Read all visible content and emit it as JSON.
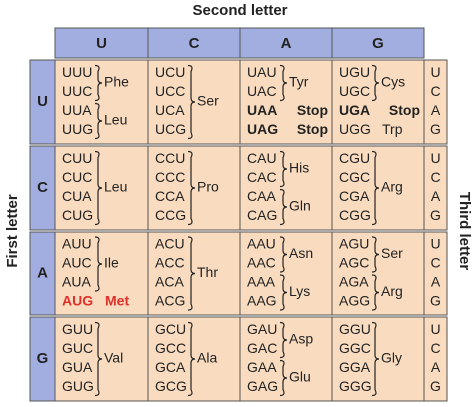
{
  "title_top": "Second letter",
  "title_left": "First letter",
  "title_right": "Third letter",
  "second_letters": [
    "U",
    "C",
    "A",
    "G"
  ],
  "rows": [
    {
      "first": "U",
      "third": [
        "U",
        "C",
        "A",
        "G"
      ],
      "cells": [
        {
          "groups": [
            {
              "codons": [
                "UUU",
                "UUC"
              ],
              "label": "Phe"
            },
            {
              "codons": [
                "UUA",
                "UUG"
              ],
              "label": "Leu"
            }
          ]
        },
        {
          "groups": [
            {
              "codons": [
                "UCU",
                "UCC",
                "UCA",
                "UCG"
              ],
              "label": "Ser"
            }
          ]
        },
        {
          "groups": [
            {
              "codons": [
                "UAU",
                "UAC"
              ],
              "label": "Tyr"
            },
            {
              "codons": [
                "UAA"
              ],
              "label": "Stop",
              "emphasis": "stop"
            },
            {
              "codons": [
                "UAG"
              ],
              "label": "Stop",
              "emphasis": "stop"
            }
          ]
        },
        {
          "groups": [
            {
              "codons": [
                "UGU",
                "UGC"
              ],
              "label": "Cys"
            },
            {
              "codons": [
                "UGA"
              ],
              "label": "Stop",
              "emphasis": "stop"
            },
            {
              "codons": [
                "UGG"
              ],
              "label": "Trp"
            }
          ]
        }
      ]
    },
    {
      "first": "C",
      "third": [
        "U",
        "C",
        "A",
        "G"
      ],
      "cells": [
        {
          "groups": [
            {
              "codons": [
                "CUU",
                "CUC",
                "CUA",
                "CUG"
              ],
              "label": "Leu"
            }
          ]
        },
        {
          "groups": [
            {
              "codons": [
                "CCU",
                "CCC",
                "CCA",
                "CCG"
              ],
              "label": "Pro"
            }
          ]
        },
        {
          "groups": [
            {
              "codons": [
                "CAU",
                "CAC"
              ],
              "label": "His"
            },
            {
              "codons": [
                "CAA",
                "CAG"
              ],
              "label": "Gln"
            }
          ]
        },
        {
          "groups": [
            {
              "codons": [
                "CGU",
                "CGC",
                "CGA",
                "CGG"
              ],
              "label": "Arg"
            }
          ]
        }
      ]
    },
    {
      "first": "A",
      "third": [
        "U",
        "C",
        "A",
        "G"
      ],
      "cells": [
        {
          "groups": [
            {
              "codons": [
                "AUU",
                "AUC",
                "AUA"
              ],
              "label": "Ile"
            },
            {
              "codons": [
                "AUG"
              ],
              "label": "Met",
              "emphasis": "start"
            }
          ]
        },
        {
          "groups": [
            {
              "codons": [
                "ACU",
                "ACC",
                "ACA",
                "ACG"
              ],
              "label": "Thr"
            }
          ]
        },
        {
          "groups": [
            {
              "codons": [
                "AAU",
                "AAC"
              ],
              "label": "Asn"
            },
            {
              "codons": [
                "AAA",
                "AAG"
              ],
              "label": "Lys"
            }
          ]
        },
        {
          "groups": [
            {
              "codons": [
                "AGU",
                "AGC"
              ],
              "label": "Ser"
            },
            {
              "codons": [
                "AGA",
                "AGG"
              ],
              "label": "Arg"
            }
          ]
        }
      ]
    },
    {
      "first": "G",
      "third": [
        "U",
        "C",
        "A",
        "G"
      ],
      "cells": [
        {
          "groups": [
            {
              "codons": [
                "GUU",
                "GUC",
                "GUA",
                "GUG"
              ],
              "label": "Val"
            }
          ]
        },
        {
          "groups": [
            {
              "codons": [
                "GCU",
                "GCC",
                "GCA",
                "GCG"
              ],
              "label": "Ala"
            }
          ]
        },
        {
          "groups": [
            {
              "codons": [
                "GAU",
                "GAC"
              ],
              "label": "Asp"
            },
            {
              "codons": [
                "GAA",
                "GAG"
              ],
              "label": "Glu"
            }
          ]
        },
        {
          "groups": [
            {
              "codons": [
                "GGU",
                "GGC",
                "GGA",
                "GGG"
              ],
              "label": "Gly"
            }
          ]
        }
      ]
    }
  ]
}
